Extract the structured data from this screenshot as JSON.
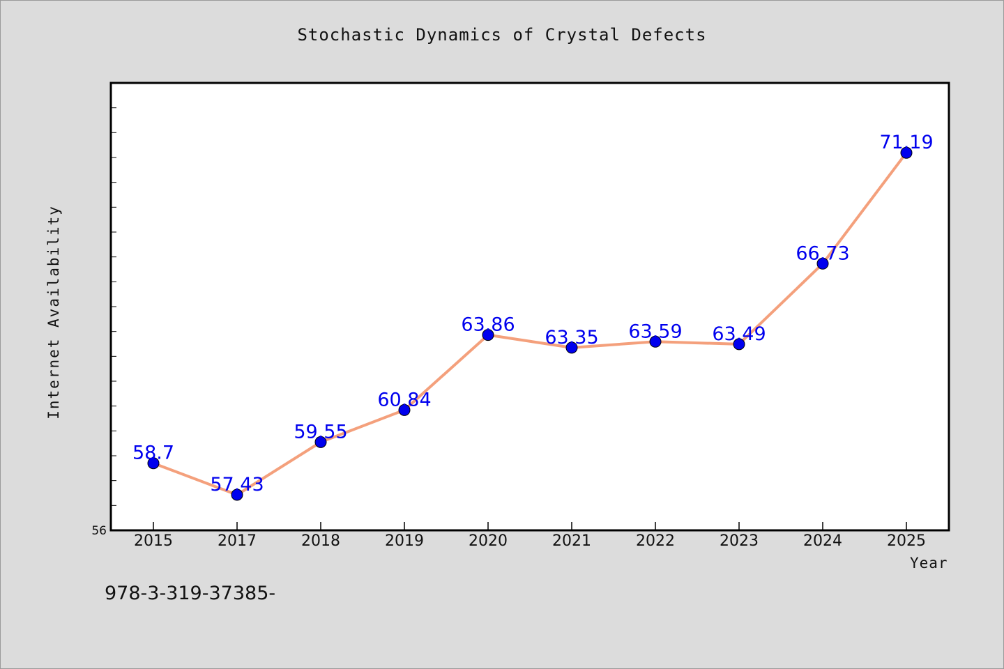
{
  "chart_data": {
    "type": "line",
    "title": "Stochastic Dynamics of Crystal Defects",
    "xlabel": "Year",
    "ylabel": "Internet Availability",
    "categories": [
      "2015",
      "2017",
      "2018",
      "2019",
      "2020",
      "2021",
      "2022",
      "2023",
      "2024",
      "2025"
    ],
    "values": [
      58.7,
      57.43,
      59.55,
      60.84,
      63.86,
      63.35,
      63.59,
      63.49,
      66.73,
      71.19
    ],
    "data_labels": [
      "58.7",
      "57.43",
      "59.55",
      "60.84",
      "63.86",
      "63.35",
      "63.59",
      "63.49",
      "66.73",
      "71.19"
    ],
    "ylim": [
      56,
      74
    ],
    "y_tick_labels": [
      "56"
    ],
    "grid": false,
    "legend": "none",
    "colors": {
      "line": "#f4a07c",
      "marker": "#0000ee",
      "data_label": "#0000ee",
      "plot_background": "#ffffff",
      "figure_background": "#dcdcdc"
    }
  },
  "footnote": "978-3-319-37385-"
}
